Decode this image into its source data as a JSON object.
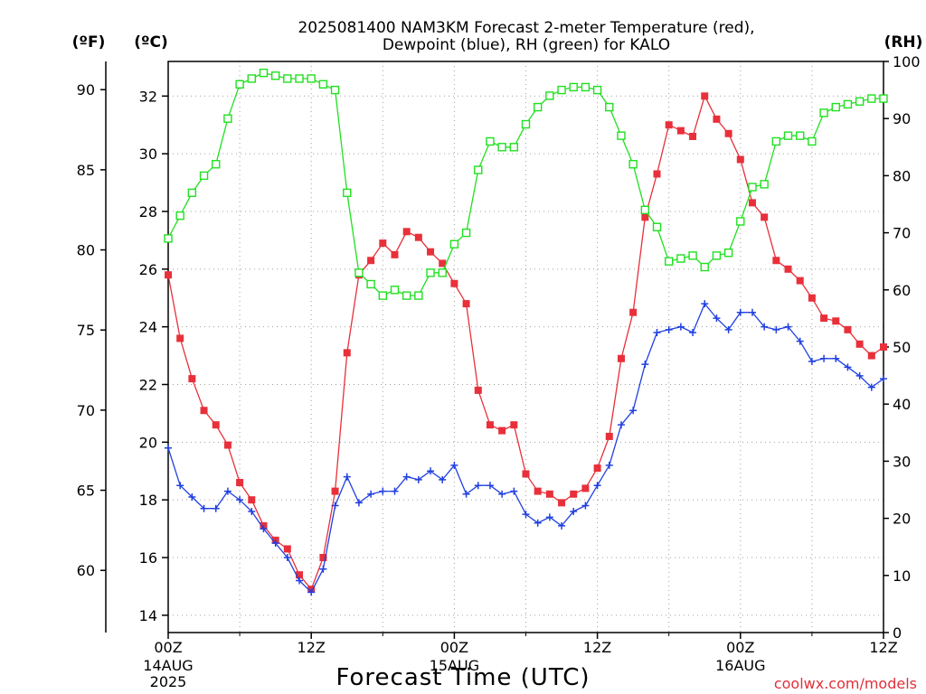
{
  "title_line1": "2025081400 NAM3KM Forecast 2-meter Temperature (red),",
  "title_line2": "Dewpoint (blue), RH (green) for KALO",
  "unit_f": "(ºF)",
  "unit_c": "(ºC)",
  "unit_rh": "(RH)",
  "xlabel": "Forecast Time (UTC)",
  "credit": "coolwx.com/models",
  "x_ticks": [
    {
      "h": 0,
      "label": "00Z"
    },
    {
      "h": 12,
      "label": "12Z"
    },
    {
      "h": 24,
      "label": "00Z"
    },
    {
      "h": 36,
      "label": "12Z"
    },
    {
      "h": 48,
      "label": "00Z"
    },
    {
      "h": 60,
      "label": "12Z"
    }
  ],
  "date_labels": [
    {
      "h": 0,
      "line1": "14AUG",
      "line2": "2025"
    },
    {
      "h": 24,
      "line1": "15AUG",
      "line2": ""
    },
    {
      "h": 48,
      "line1": "16AUG",
      "line2": ""
    }
  ],
  "colors": {
    "temperature": "#e8303a",
    "dewpoint": "#2040e0",
    "rh": "#20e020",
    "grid": "#a0a0a0",
    "credit": "#e0303a"
  },
  "chart_data": {
    "type": "line",
    "x_units": "forecast hour from 2025-08-14 00Z",
    "xlim": [
      0,
      60
    ],
    "y_celsius_lim": [
      13.4,
      33.2
    ],
    "y_celsius_ticks": [
      14,
      16,
      18,
      20,
      22,
      24,
      26,
      28,
      30,
      32
    ],
    "y_fahrenheit_ticks": [
      60,
      65,
      70,
      75,
      80,
      85,
      90
    ],
    "y_rh_lim": [
      0,
      100
    ],
    "y_rh_ticks": [
      0,
      10,
      20,
      30,
      40,
      50,
      60,
      70,
      80,
      90,
      100
    ],
    "grid": true,
    "x": [
      0,
      1,
      2,
      3,
      4,
      5,
      6,
      7,
      8,
      9,
      10,
      11,
      12,
      13,
      14,
      15,
      16,
      17,
      18,
      19,
      20,
      21,
      22,
      23,
      24,
      25,
      26,
      27,
      28,
      29,
      30,
      31,
      32,
      33,
      34,
      35,
      36,
      37,
      38,
      39,
      40,
      41,
      42,
      43,
      44,
      45,
      46,
      47,
      48,
      49,
      50,
      51,
      52,
      53,
      54,
      55,
      56,
      57,
      58,
      59,
      60
    ],
    "series": [
      {
        "name": "Temperature",
        "units": "°C",
        "marker": "filled-square",
        "values": [
          25.8,
          23.6,
          22.2,
          21.1,
          20.6,
          19.9,
          18.6,
          18.0,
          17.1,
          16.6,
          16.3,
          15.4,
          14.9,
          16.0,
          18.3,
          23.1,
          25.8,
          26.3,
          26.9,
          26.5,
          27.3,
          27.1,
          26.6,
          26.2,
          25.5,
          24.8,
          21.8,
          20.6,
          20.4,
          20.6,
          18.9,
          18.3,
          18.2,
          17.9,
          18.2,
          18.4,
          19.1,
          20.2,
          22.9,
          24.5,
          27.8,
          29.3,
          31.0,
          30.8,
          30.6,
          32.0,
          31.2,
          30.7,
          29.8,
          28.3,
          27.8,
          26.3,
          26.0,
          25.6,
          25.0,
          24.3,
          24.2,
          23.9,
          23.4,
          23.0,
          23.3
        ]
      },
      {
        "name": "Dewpoint",
        "units": "°C",
        "marker": "plus",
        "values": [
          19.8,
          18.5,
          18.1,
          17.7,
          17.7,
          18.3,
          18.0,
          17.6,
          17.0,
          16.5,
          16.0,
          15.2,
          14.8,
          15.6,
          17.8,
          18.8,
          17.9,
          18.2,
          18.3,
          18.3,
          18.8,
          18.7,
          19.0,
          18.7,
          19.2,
          18.2,
          18.5,
          18.5,
          18.2,
          18.3,
          17.5,
          17.2,
          17.4,
          17.1,
          17.6,
          17.8,
          18.5,
          19.2,
          20.6,
          21.1,
          22.7,
          23.8,
          23.9,
          24.0,
          23.8,
          24.8,
          24.3,
          23.9,
          24.5,
          24.5,
          24.0,
          23.9,
          24.0,
          23.5,
          22.8,
          22.9,
          22.9,
          22.6,
          22.3,
          21.9,
          22.2
        ]
      },
      {
        "name": "RH",
        "units": "%",
        "marker": "open-square",
        "values": [
          69,
          73,
          77,
          80,
          82,
          90,
          96,
          97,
          98,
          97.5,
          97,
          97,
          97,
          96,
          95,
          77,
          63,
          61,
          59,
          60,
          59,
          59,
          63,
          63,
          68,
          70,
          81,
          86,
          85,
          85,
          89,
          92,
          94,
          95,
          95.5,
          95.5,
          95,
          92,
          87,
          82,
          74,
          71,
          65,
          65.5,
          66,
          64,
          66,
          66.5,
          72,
          78,
          78.5,
          86,
          87,
          87,
          86,
          91,
          92,
          92.5,
          93,
          93.5,
          93.5
        ]
      }
    ]
  }
}
